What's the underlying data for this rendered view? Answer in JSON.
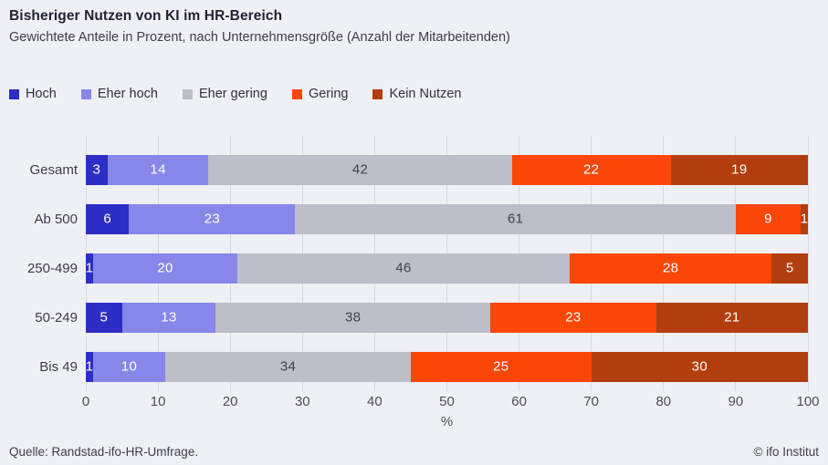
{
  "header": {
    "title": "Bisheriger Nutzen von KI im HR-Bereich",
    "subtitle": "Gewichtete Anteile in Prozent, nach Unternehmensgröße (Anzahl der Mitarbeitenden)"
  },
  "chart_data": {
    "type": "bar",
    "orientation": "horizontal-stacked",
    "title": "Bisheriger Nutzen von KI im HR-Bereich",
    "subtitle": "Gewichtete Anteile in Prozent, nach Unternehmensgröße (Anzahl der Mitarbeitenden)",
    "categories": [
      "Gesamt",
      "Ab 500",
      "250-499",
      "50-249",
      "Bis 49"
    ],
    "series": [
      {
        "name": "Hoch",
        "color": "#2d2ec5",
        "label_color": "#ffffff",
        "values": [
          3,
          6,
          1,
          5,
          1
        ]
      },
      {
        "name": "Eher hoch",
        "color": "#8687e8",
        "label_color": "#ffffff",
        "values": [
          14,
          23,
          20,
          13,
          10
        ]
      },
      {
        "name": "Eher gering",
        "color": "#bcbec8",
        "label_color": "#3f434e",
        "values": [
          42,
          61,
          46,
          38,
          34
        ]
      },
      {
        "name": "Gering",
        "color": "#fa4708",
        "label_color": "#ffffff",
        "values": [
          22,
          9,
          28,
          23,
          25
        ]
      },
      {
        "name": "Kein Nutzen",
        "color": "#b23d0e",
        "label_color": "#ffffff",
        "values": [
          19,
          1,
          5,
          21,
          30
        ]
      }
    ],
    "x_ticks": [
      0,
      10,
      20,
      30,
      40,
      50,
      60,
      70,
      80,
      90,
      100
    ],
    "xlim": [
      0,
      100
    ],
    "xlabel": "%",
    "grid": "vertical",
    "legend_position": "top-left",
    "background_color": "#eff0f5",
    "gridline_color": "#d7d8df"
  },
  "footer": {
    "source": "Quelle: Randstad-ifo-HR-Umfrage.",
    "copyright": "© ifo Institut"
  }
}
